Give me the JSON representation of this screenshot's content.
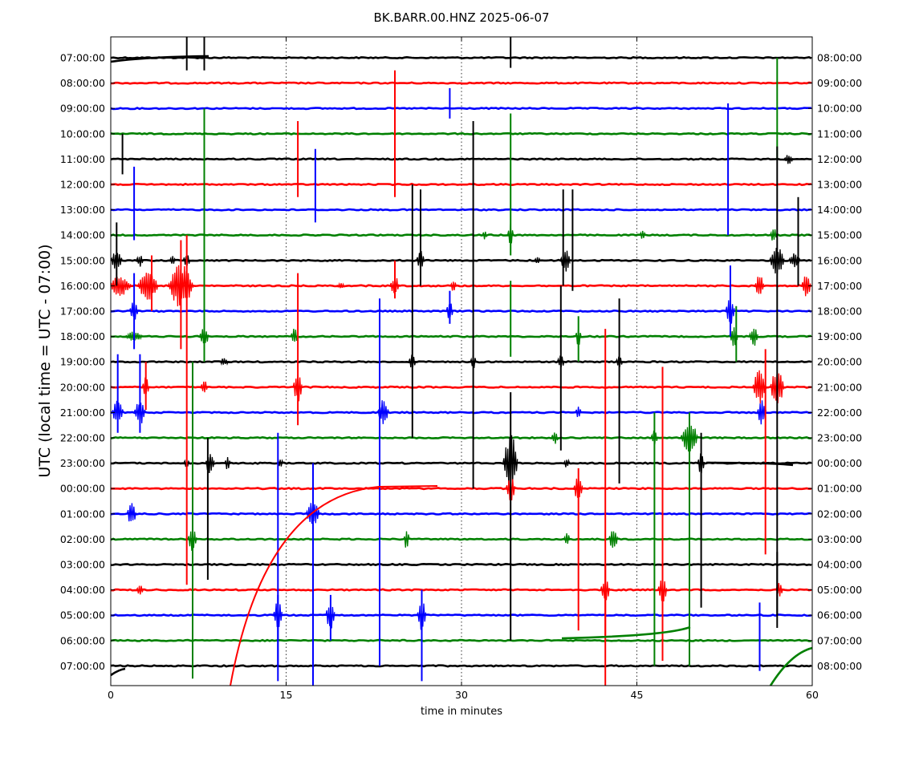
{
  "chart_data": {
    "type": "line",
    "title": "BK.BARR.00.HNZ 2025-06-07",
    "xlabel": "time in minutes",
    "ylabel": "UTC (local time = UTC - 07:00)",
    "xlim": [
      0,
      60
    ],
    "x_ticks": [
      0,
      15,
      30,
      45,
      60
    ],
    "x_gridlines": [
      15,
      30,
      45
    ],
    "grid": "vertical dotted at 15, 30, 45",
    "left_labels": [
      "07:00:00",
      "08:00:00",
      "09:00:00",
      "10:00:00",
      "11:00:00",
      "12:00:00",
      "13:00:00",
      "14:00:00",
      "15:00:00",
      "16:00:00",
      "17:00:00",
      "18:00:00",
      "19:00:00",
      "20:00:00",
      "21:00:00",
      "22:00:00",
      "23:00:00",
      "00:00:00",
      "01:00:00",
      "02:00:00",
      "03:00:00",
      "04:00:00",
      "05:00:00",
      "06:00:00",
      "07:00:00"
    ],
    "right_labels": [
      "08:00:00",
      "09:00:00",
      "10:00:00",
      "11:00:00",
      "12:00:00",
      "13:00:00",
      "14:00:00",
      "15:00:00",
      "16:00:00",
      "17:00:00",
      "18:00:00",
      "19:00:00",
      "20:00:00",
      "21:00:00",
      "22:00:00",
      "23:00:00",
      "00:00:00",
      "01:00:00",
      "02:00:00",
      "03:00:00",
      "04:00:00",
      "05:00:00",
      "06:00:00",
      "07:00:00",
      "08:00:00"
    ],
    "trace_colors": [
      "#000000",
      "#ff0000",
      "#0000ff",
      "#008000"
    ],
    "spikes": [
      {
        "row": 0,
        "x": 6.5,
        "up": 2.0,
        "down": 0.5
      },
      {
        "row": 0,
        "x": 8.0,
        "up": 2.0,
        "down": 0.5
      },
      {
        "row": 0,
        "x": 34.2,
        "up": 2.0,
        "down": 0.4
      },
      {
        "row": 2,
        "x": 29.0,
        "up": 0.8,
        "down": 0.4
      },
      {
        "row": 3,
        "x": 57.0,
        "up": 3.0,
        "down": 1.0
      },
      {
        "row": 4,
        "x": 1.0,
        "up": 1.0,
        "down": 0.6
      },
      {
        "row": 5,
        "x": 16.0,
        "up": 2.5,
        "down": 0.5
      },
      {
        "row": 5,
        "x": 24.3,
        "up": 4.5,
        "down": 0.5
      },
      {
        "row": 6,
        "x": 2.0,
        "up": 1.7,
        "down": 1.2
      },
      {
        "row": 6,
        "x": 17.5,
        "up": 2.4,
        "down": 0.5
      },
      {
        "row": 6,
        "x": 52.8,
        "up": 4.2,
        "down": 1.0
      },
      {
        "row": 7,
        "x": 34.2,
        "up": 4.8,
        "down": 0.8
      },
      {
        "row": 8,
        "x": 0.5,
        "up": 1.5,
        "down": 1.0
      },
      {
        "row": 8,
        "x": 26.5,
        "up": 2.8,
        "down": 1.0
      },
      {
        "row": 8,
        "x": 38.7,
        "up": 2.8,
        "down": 1.0
      },
      {
        "row": 8,
        "x": 39.5,
        "up": 2.8,
        "down": 1.2
      },
      {
        "row": 8,
        "x": 58.8,
        "up": 2.5,
        "down": 1.0
      },
      {
        "row": 9,
        "x": 3.5,
        "up": 1.2,
        "down": 1.0
      },
      {
        "row": 9,
        "x": 6.0,
        "up": 1.8,
        "down": 2.5
      },
      {
        "row": 9,
        "x": 24.3,
        "up": 1.0,
        "down": 0.5
      },
      {
        "row": 10,
        "x": 2.0,
        "up": 1.5,
        "down": 1.5
      },
      {
        "row": 10,
        "x": 29.0,
        "up": 0.8,
        "down": 0.5
      },
      {
        "row": 10,
        "x": 53.0,
        "up": 1.8,
        "down": 1.0
      },
      {
        "row": 11,
        "x": 8.0,
        "up": 9.0,
        "down": 1.0
      },
      {
        "row": 11,
        "x": 34.2,
        "up": 2.2,
        "down": 0.8
      },
      {
        "row": 11,
        "x": 40.0,
        "up": 0.8,
        "down": 1.0
      },
      {
        "row": 11,
        "x": 53.5,
        "up": 1.2,
        "down": 1.0
      },
      {
        "row": 12,
        "x": 25.8,
        "up": 7.0,
        "down": 3.0
      },
      {
        "row": 12,
        "x": 31.0,
        "up": 9.5,
        "down": 5.0
      },
      {
        "row": 12,
        "x": 38.5,
        "up": 3.0,
        "down": 3.5
      },
      {
        "row": 12,
        "x": 43.5,
        "up": 2.5,
        "down": 4.8
      },
      {
        "row": 12,
        "x": 57.0,
        "up": 8.5,
        "down": 10.0
      },
      {
        "row": 13,
        "x": 3.0,
        "up": 1.0,
        "down": 0.9
      },
      {
        "row": 13,
        "x": 6.5,
        "up": 6.0,
        "down": 7.8
      },
      {
        "row": 13,
        "x": 16.0,
        "up": 4.5,
        "down": 1.5
      },
      {
        "row": 13,
        "x": 42.3,
        "up": 2.3,
        "down": 9.8
      },
      {
        "row": 13,
        "x": 47.2,
        "up": 0.8,
        "down": 8.0
      },
      {
        "row": 13,
        "x": 56.0,
        "up": 1.5,
        "down": 6.6
      },
      {
        "row": 14,
        "x": 0.6,
        "up": 2.3,
        "down": 0.8
      },
      {
        "row": 14,
        "x": 2.5,
        "up": 2.3,
        "down": 0.8
      },
      {
        "row": 14,
        "x": 23.0,
        "up": 4.5,
        "down": 1.0
      },
      {
        "row": 15,
        "x": 7.0,
        "up": 3.0,
        "down": 9.5
      },
      {
        "row": 15,
        "x": 46.5,
        "up": 1.0,
        "down": 9.0
      },
      {
        "row": 15,
        "x": 49.5,
        "up": 1.0,
        "down": 9.0
      },
      {
        "row": 16,
        "x": 8.3,
        "up": 1.0,
        "down": 4.6
      },
      {
        "row": 16,
        "x": 34.2,
        "up": 2.8,
        "down": 7.0
      },
      {
        "row": 16,
        "x": 50.5,
        "up": 1.2,
        "down": 5.7
      },
      {
        "row": 17,
        "x": 40.0,
        "up": 0.8,
        "down": 5.6
      },
      {
        "row": 18,
        "x": 14.3,
        "up": 3.2,
        "down": 6.0
      },
      {
        "row": 18,
        "x": 17.3,
        "up": 2.0,
        "down": 7.0
      },
      {
        "row": 18,
        "x": 23.0,
        "up": 3.0,
        "down": 6.0
      },
      {
        "row": 20,
        "x": 57.0,
        "up": 0.5,
        "down": 2.5
      },
      {
        "row": 21,
        "x": 42.3,
        "up": 1.0,
        "down": 3.8
      },
      {
        "row": 21,
        "x": 47.2,
        "up": 0.5,
        "down": 2.8
      },
      {
        "row": 22,
        "x": 14.3,
        "up": 0.8,
        "down": 2.6
      },
      {
        "row": 22,
        "x": 18.8,
        "up": 0.8,
        "down": 1.0
      },
      {
        "row": 22,
        "x": 26.6,
        "up": 1.0,
        "down": 2.6
      },
      {
        "row": 22,
        "x": 55.5,
        "up": 0.5,
        "down": 2.2
      }
    ],
    "bursts": [
      {
        "row": 4,
        "x": 58.0,
        "w": 0.8,
        "amp": 0.2
      },
      {
        "row": 7,
        "x": 32.0,
        "w": 0.4,
        "amp": 0.2
      },
      {
        "row": 7,
        "x": 34.2,
        "w": 0.5,
        "amp": 0.5
      },
      {
        "row": 7,
        "x": 45.5,
        "w": 0.5,
        "amp": 0.2
      },
      {
        "row": 7,
        "x": 56.7,
        "w": 0.6,
        "amp": 0.3
      },
      {
        "row": 8,
        "x": 0.5,
        "w": 1.0,
        "amp": 0.4
      },
      {
        "row": 8,
        "x": 2.5,
        "w": 0.6,
        "amp": 0.25
      },
      {
        "row": 8,
        "x": 5.3,
        "w": 0.5,
        "amp": 0.2
      },
      {
        "row": 8,
        "x": 6.5,
        "w": 0.6,
        "amp": 0.3
      },
      {
        "row": 8,
        "x": 26.5,
        "w": 0.7,
        "amp": 0.4
      },
      {
        "row": 8,
        "x": 36.5,
        "w": 0.5,
        "amp": 0.15
      },
      {
        "row": 8,
        "x": 38.9,
        "w": 0.9,
        "amp": 0.5
      },
      {
        "row": 8,
        "x": 57.0,
        "w": 1.3,
        "amp": 0.6
      },
      {
        "row": 8,
        "x": 58.5,
        "w": 1.0,
        "amp": 0.3
      },
      {
        "row": 9,
        "x": 0.8,
        "w": 2.0,
        "amp": 0.4
      },
      {
        "row": 9,
        "x": 3.2,
        "w": 1.8,
        "amp": 0.6
      },
      {
        "row": 9,
        "x": 6.0,
        "w": 2.2,
        "amp": 0.9
      },
      {
        "row": 9,
        "x": 19.7,
        "w": 0.8,
        "amp": 0.1
      },
      {
        "row": 9,
        "x": 24.3,
        "w": 0.8,
        "amp": 0.4
      },
      {
        "row": 9,
        "x": 29.3,
        "w": 0.5,
        "amp": 0.25
      },
      {
        "row": 9,
        "x": 55.5,
        "w": 0.8,
        "amp": 0.5
      },
      {
        "row": 9,
        "x": 59.5,
        "w": 0.8,
        "amp": 0.5
      },
      {
        "row": 10,
        "x": 2.0,
        "w": 0.8,
        "amp": 0.4
      },
      {
        "row": 10,
        "x": 29.0,
        "w": 0.6,
        "amp": 0.4
      },
      {
        "row": 10,
        "x": 53.0,
        "w": 0.8,
        "amp": 0.6
      },
      {
        "row": 11,
        "x": 2.0,
        "w": 1.5,
        "amp": 0.2
      },
      {
        "row": 11,
        "x": 8.0,
        "w": 0.8,
        "amp": 0.4
      },
      {
        "row": 11,
        "x": 15.7,
        "w": 0.6,
        "amp": 0.35
      },
      {
        "row": 11,
        "x": 40.0,
        "w": 0.5,
        "amp": 0.4
      },
      {
        "row": 11,
        "x": 53.3,
        "w": 0.8,
        "amp": 0.4
      },
      {
        "row": 11,
        "x": 55.0,
        "w": 0.8,
        "amp": 0.4
      },
      {
        "row": 12,
        "x": 9.7,
        "w": 0.8,
        "amp": 0.15
      },
      {
        "row": 12,
        "x": 25.8,
        "w": 0.6,
        "amp": 0.3
      },
      {
        "row": 12,
        "x": 31.0,
        "w": 0.5,
        "amp": 0.3
      },
      {
        "row": 12,
        "x": 38.5,
        "w": 0.6,
        "amp": 0.3
      },
      {
        "row": 12,
        "x": 43.5,
        "w": 0.6,
        "amp": 0.3
      },
      {
        "row": 13,
        "x": 3.0,
        "w": 0.6,
        "amp": 0.4
      },
      {
        "row": 13,
        "x": 8.0,
        "w": 0.6,
        "amp": 0.3
      },
      {
        "row": 13,
        "x": 16.0,
        "w": 0.8,
        "amp": 0.6
      },
      {
        "row": 13,
        "x": 55.5,
        "w": 1.2,
        "amp": 0.7
      },
      {
        "row": 13,
        "x": 57.0,
        "w": 1.2,
        "amp": 0.8
      },
      {
        "row": 14,
        "x": 0.6,
        "w": 1.0,
        "amp": 0.5
      },
      {
        "row": 14,
        "x": 2.5,
        "w": 1.0,
        "amp": 0.5
      },
      {
        "row": 14,
        "x": 23.3,
        "w": 1.0,
        "amp": 0.5
      },
      {
        "row": 14,
        "x": 40.0,
        "w": 0.5,
        "amp": 0.3
      },
      {
        "row": 14,
        "x": 55.7,
        "w": 0.8,
        "amp": 0.5
      },
      {
        "row": 15,
        "x": 38.0,
        "w": 0.6,
        "amp": 0.3
      },
      {
        "row": 15,
        "x": 46.5,
        "w": 0.6,
        "amp": 0.3
      },
      {
        "row": 15,
        "x": 49.5,
        "w": 1.5,
        "amp": 0.7
      },
      {
        "row": 16,
        "x": 6.5,
        "w": 0.5,
        "amp": 0.2
      },
      {
        "row": 16,
        "x": 8.5,
        "w": 0.8,
        "amp": 0.5
      },
      {
        "row": 16,
        "x": 10.0,
        "w": 0.5,
        "amp": 0.3
      },
      {
        "row": 16,
        "x": 14.5,
        "w": 0.5,
        "amp": 0.2
      },
      {
        "row": 16,
        "x": 34.2,
        "w": 1.3,
        "amp": 1.2
      },
      {
        "row": 16,
        "x": 39.0,
        "w": 0.5,
        "amp": 0.2
      },
      {
        "row": 16,
        "x": 50.5,
        "w": 0.6,
        "amp": 0.5
      },
      {
        "row": 17,
        "x": 34.2,
        "w": 0.8,
        "amp": 0.5
      },
      {
        "row": 17,
        "x": 40.0,
        "w": 0.8,
        "amp": 0.6
      },
      {
        "row": 18,
        "x": 1.8,
        "w": 0.8,
        "amp": 0.5
      },
      {
        "row": 18,
        "x": 17.3,
        "w": 1.2,
        "amp": 0.5
      },
      {
        "row": 19,
        "x": 7.0,
        "w": 0.8,
        "amp": 0.5
      },
      {
        "row": 19,
        "x": 25.3,
        "w": 0.5,
        "amp": 0.4
      },
      {
        "row": 19,
        "x": 39.0,
        "w": 0.5,
        "amp": 0.3
      },
      {
        "row": 19,
        "x": 43.0,
        "w": 0.8,
        "amp": 0.5
      },
      {
        "row": 21,
        "x": 2.5,
        "w": 0.6,
        "amp": 0.2
      },
      {
        "row": 21,
        "x": 42.3,
        "w": 0.8,
        "amp": 0.5
      },
      {
        "row": 21,
        "x": 47.2,
        "w": 0.8,
        "amp": 0.5
      },
      {
        "row": 21,
        "x": 57.2,
        "w": 0.6,
        "amp": 0.3
      },
      {
        "row": 22,
        "x": 14.3,
        "w": 0.8,
        "amp": 0.6
      },
      {
        "row": 22,
        "x": 18.8,
        "w": 0.8,
        "amp": 0.6
      },
      {
        "row": 22,
        "x": 26.6,
        "w": 0.8,
        "amp": 0.6
      }
    ]
  }
}
